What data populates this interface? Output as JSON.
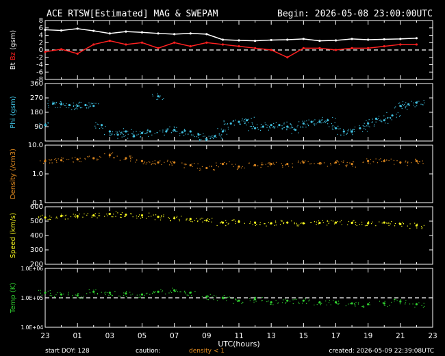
{
  "header": {
    "title": "ACE RTSW[Estimated] MAG & SWEPAM",
    "begin": "Begin: 2026-05-08 23:00:00UTC"
  },
  "footer": {
    "start_doy": "start DOY: 128",
    "caution": "caution:",
    "density_note": "density < 1",
    "created": "created: 2026-05-09 22:39:08UTC"
  },
  "colors": {
    "background": "#000000",
    "axes": "#ffffff",
    "bt": "#ffffff",
    "bz": "#ff2020",
    "phi": "#40c0e0",
    "density": "#e08a20",
    "speed": "#ffff20",
    "temp": "#30d030",
    "dashed": "#ffffff",
    "caution": "#e08a20"
  },
  "chart_data": [
    {
      "type": "line",
      "panel": "mag",
      "ylabel_parts": [
        {
          "text": "Bt",
          "color": "#ffffff"
        },
        {
          "text": " Bz",
          "color": "#ff2020"
        },
        {
          "text": " (gsm)",
          "color": "#ffffff"
        }
      ],
      "ylim": [
        -8,
        8
      ],
      "yticks": [
        "8",
        "6",
        "4",
        "2",
        "0",
        "-2",
        "-4",
        "-6",
        "-8"
      ],
      "reference_line": 0,
      "x_hours": [
        0,
        1,
        2,
        3,
        4,
        5,
        6,
        7,
        8,
        9,
        10,
        11,
        12,
        13,
        14,
        15,
        16,
        17,
        18,
        19,
        20,
        21,
        22,
        23
      ],
      "series": [
        {
          "key": "bt",
          "values": [
            5.5,
            5.3,
            5.8,
            5.2,
            4.5,
            5.0,
            4.8,
            4.5,
            4.3,
            4.5,
            4.3,
            2.8,
            2.6,
            2.5,
            2.7,
            2.8,
            3.0,
            2.5,
            2.6,
            3.0,
            2.8,
            2.9,
            3.0,
            3.2
          ]
        },
        {
          "key": "bz",
          "values": [
            -0.5,
            0.2,
            -1.0,
            1.5,
            2.5,
            1.5,
            2.0,
            0.5,
            2.0,
            1.0,
            2.0,
            1.5,
            1.0,
            0.5,
            0.0,
            -2.0,
            0.5,
            0.5,
            0.0,
            0.5,
            0.5,
            1.0,
            1.5,
            1.5
          ]
        }
      ]
    },
    {
      "type": "scatter",
      "panel": "phi",
      "ylabel_parts": [
        {
          "text": "Phi (gsm)",
          "color": "#40c0e0"
        }
      ],
      "ylim": [
        0,
        360
      ],
      "yticks": [
        "360",
        "270",
        "180",
        "90"
      ],
      "x_hours": [
        0,
        0.5,
        1,
        1.5,
        2,
        2.5,
        3,
        3.5,
        4,
        4.5,
        5,
        5.5,
        6,
        6.5,
        7,
        7.5,
        8,
        8.5,
        9,
        9.5,
        10,
        10.5,
        11,
        11.5,
        12,
        12.5,
        13,
        13.5,
        14,
        14.5,
        15,
        15.5,
        16,
        16.5,
        17,
        17.5,
        18,
        18.5,
        19,
        19.5,
        20,
        20.5,
        21,
        21.5,
        22,
        22.5,
        23
      ],
      "values": [
        100,
        235,
        230,
        225,
        220,
        225,
        220,
        100,
        60,
        40,
        60,
        30,
        50,
        60,
        280,
        60,
        70,
        55,
        60,
        40,
        10,
        30,
        60,
        110,
        120,
        130,
        80,
        90,
        100,
        100,
        90,
        70,
        110,
        120,
        120,
        130,
        80,
        60,
        60,
        80,
        110,
        140,
        130,
        160,
        220,
        230,
        240
      ]
    },
    {
      "type": "scatter",
      "panel": "density",
      "ylabel_parts": [
        {
          "text": "Density (/cm3)",
          "color": "#e08a20"
        }
      ],
      "ylim": [
        0.1,
        10
      ],
      "log": true,
      "yticks": [
        "10.0",
        "1.0",
        "0.1"
      ],
      "x_hours": [
        0,
        1,
        2,
        3,
        4,
        5,
        6,
        7,
        8,
        9,
        10,
        11,
        12,
        13,
        14,
        15,
        16,
        17,
        18,
        19,
        20,
        21,
        22,
        23
      ],
      "values": [
        2.8,
        3.0,
        3.2,
        3.5,
        4.5,
        3.5,
        2.8,
        2.5,
        2.5,
        2.0,
        1.6,
        2.2,
        1.8,
        2.0,
        2.2,
        2.2,
        2.5,
        2.3,
        2.5,
        2.2,
        2.8,
        2.8,
        2.5,
        2.8
      ]
    },
    {
      "type": "scatter",
      "panel": "speed",
      "ylabel_parts": [
        {
          "text": "Speed (km/s)",
          "color": "#ffff20"
        }
      ],
      "ylim": [
        200,
        600
      ],
      "yticks": [
        "600",
        "500",
        "400",
        "300",
        "200"
      ],
      "x_hours": [
        0,
        1,
        2,
        3,
        4,
        5,
        6,
        7,
        8,
        9,
        10,
        11,
        12,
        13,
        14,
        15,
        16,
        17,
        18,
        19,
        20,
        21,
        22,
        23
      ],
      "values": [
        525,
        535,
        535,
        540,
        550,
        545,
        540,
        530,
        520,
        515,
        505,
        490,
        495,
        490,
        485,
        490,
        485,
        488,
        490,
        488,
        485,
        490,
        480,
        470
      ]
    },
    {
      "type": "scatter",
      "panel": "temp",
      "ylabel_parts": [
        {
          "text": "Temp (K)",
          "color": "#30d030"
        }
      ],
      "ylim": [
        10000,
        1000000
      ],
      "log": true,
      "yticks": [
        "1.0E+06",
        "1.0E+05",
        "1.0E+04"
      ],
      "reference_line": 100000,
      "x_hours": [
        0,
        1,
        2,
        3,
        4,
        5,
        6,
        7,
        8,
        9,
        10,
        11,
        12,
        13,
        14,
        15,
        16,
        17,
        18,
        19,
        20,
        21,
        22,
        23
      ],
      "values": [
        150000,
        130000,
        120000,
        160000,
        150000,
        140000,
        130000,
        160000,
        180000,
        150000,
        110000,
        100000,
        80000,
        90000,
        70000,
        80000,
        80000,
        70000,
        70000,
        65000,
        60000,
        65000,
        75000,
        60000
      ]
    }
  ],
  "x_axis": {
    "xlabel": "UTC(hours)",
    "tick_labels": [
      "23",
      "01",
      "03",
      "05",
      "07",
      "09",
      "11",
      "13",
      "15",
      "17",
      "19",
      "21",
      "23"
    ]
  }
}
